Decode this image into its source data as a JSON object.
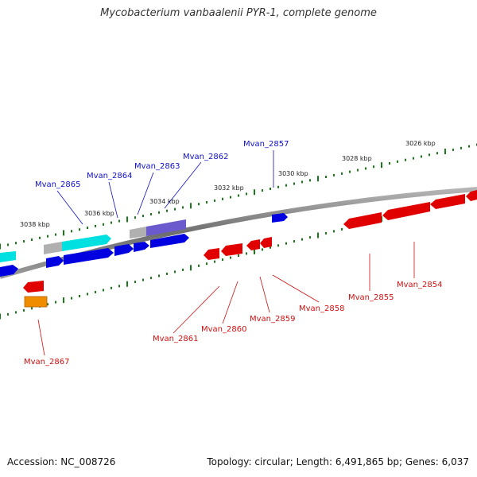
{
  "title": "Mycobacterium vanbaalenii PYR-1, complete genome",
  "footer": {
    "accession": "Accession: NC_008726",
    "stats": "Topology: circular; Length: 6,491,865 bp; Genes: 6,037"
  },
  "colors": {
    "backbone": "#7a7a7a",
    "tick": "#1a7a1a",
    "forward_label": "#1010c8",
    "reverse_label": "#d01010",
    "red_gene": "#e00000",
    "blue_gene": "#0000e0",
    "cyan_gene": "#00e0e0",
    "purple_gene": "#6a5acd",
    "grey_gene": "#b0b0b0",
    "orange_gene": "#f08c00"
  },
  "scale_labels": [
    "3026 kbp",
    "3028 kbp",
    "3030 kbp",
    "3032 kbp",
    "3034 kbp",
    "3036 kbp",
    "3038 kbp"
  ],
  "forward_labels": [
    "Mvan_2857",
    "Mvan_2862",
    "Mvan_2863",
    "Mvan_2864",
    "Mvan_2865"
  ],
  "reverse_labels": [
    "Mvan_2854",
    "Mvan_2855",
    "Mvan_2858",
    "Mvan_2859",
    "Mvan_2860",
    "Mvan_2861",
    "Mvan_2867"
  ]
}
